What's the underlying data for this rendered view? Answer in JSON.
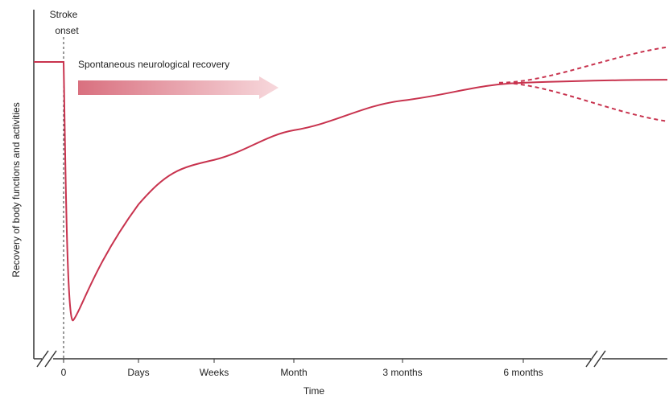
{
  "chart_data": {
    "type": "line",
    "title": "",
    "xlabel": "Time",
    "ylabel": "Recovery of body functions and activities",
    "x_ticks": [
      "0",
      "Days",
      "Weeks",
      "Month",
      "3 months",
      "6 months"
    ],
    "annotations": {
      "onset": "Stroke onset",
      "onset_line1": "Stroke",
      "onset_line2": "onset",
      "arrow": "Spontaneous neurological recovery"
    },
    "axis_breaks": true,
    "grid": false,
    "colors": {
      "curve": "#c8334e",
      "axis": "#333333",
      "arrow_start": "#d9707f",
      "arrow_end": "#f7d8dc"
    },
    "series": [
      {
        "style": "solid",
        "points": [
          {
            "x": "pre-onset",
            "y": 1.0
          },
          {
            "x": "0",
            "y": 1.0
          },
          {
            "x": "0",
            "y": 0.13
          },
          {
            "x": "Days",
            "y": 0.52
          },
          {
            "x": "Weeks",
            "y": 0.67
          },
          {
            "x": "Month",
            "y": 0.77
          },
          {
            "x": "3 months",
            "y": 0.87
          },
          {
            "x": "6 months",
            "y": 0.93
          },
          {
            "x": "end",
            "y": 0.94
          }
        ]
      },
      {
        "style": "dashed",
        "from": "6 months",
        "trend": "upper",
        "end_y": 1.05
      },
      {
        "style": "dashed",
        "from": "6 months",
        "trend": "lower",
        "end_y": 0.8
      }
    ]
  }
}
